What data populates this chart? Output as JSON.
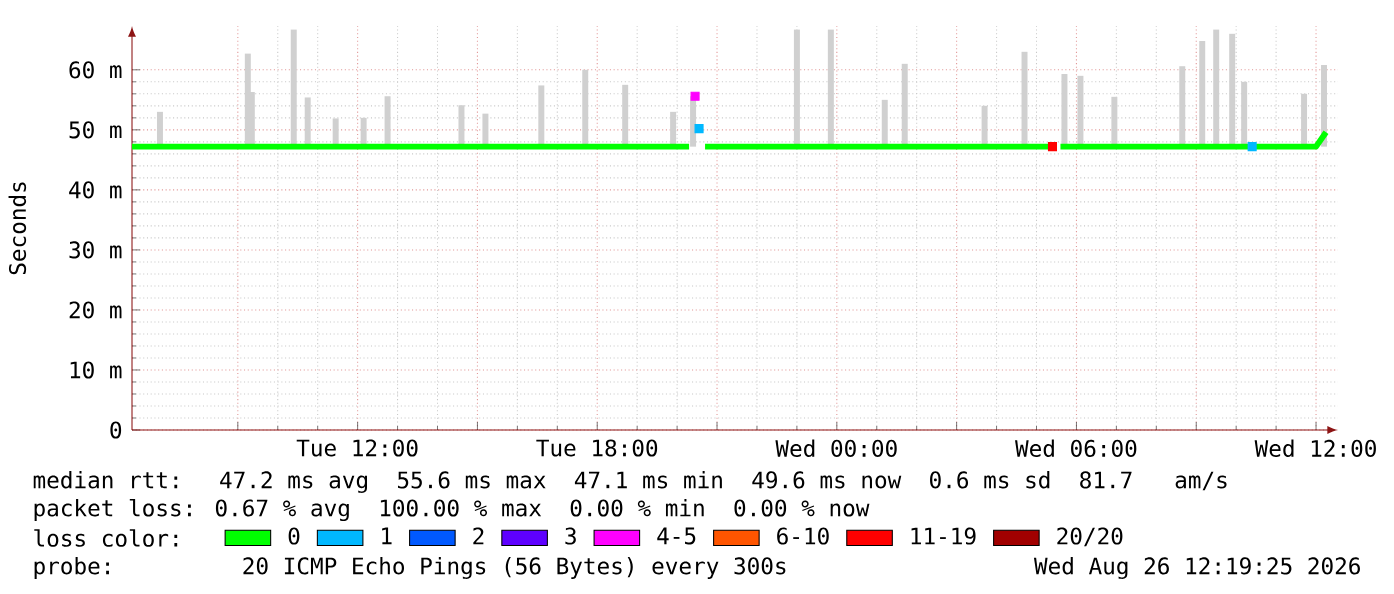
{
  "chart_data": {
    "type": "line",
    "ylabel": "Seconds",
    "xlim": [
      "2026-08-25T06:21",
      "2026-08-26T12:33"
    ],
    "ylim": [
      0,
      67.3
    ],
    "xticks": [
      {
        "value": "2026-08-25T09:00",
        "label": null
      },
      {
        "value": "2026-08-25T12:00",
        "label": "Tue 12:00"
      },
      {
        "value": "2026-08-25T15:00",
        "label": null
      },
      {
        "value": "2026-08-25T18:00",
        "label": "Tue 18:00"
      },
      {
        "value": "2026-08-25T21:00",
        "label": null
      },
      {
        "value": "2026-08-26T00:00",
        "label": "Wed 00:00"
      },
      {
        "value": "2026-08-26T03:00",
        "label": null
      },
      {
        "value": "2026-08-26T06:00",
        "label": "Wed 06:00"
      },
      {
        "value": "2026-08-26T09:00",
        "label": null
      },
      {
        "value": "2026-08-26T12:00",
        "label": "Wed 12:00"
      }
    ],
    "yticks": [
      0,
      {
        "value": 10,
        "label": "10 m"
      },
      {
        "value": 20,
        "label": "20 m"
      },
      {
        "value": 30,
        "label": "30 m"
      },
      {
        "value": 40,
        "label": "40 m"
      },
      {
        "value": 50,
        "label": "50 m"
      },
      {
        "value": 60,
        "label": "60 m"
      }
    ],
    "grid": true,
    "legend": "bottom",
    "series": [
      {
        "type": "bar",
        "color": "#d0d0d0",
        "x": [
          "2026-08-25T07:03",
          "2026-08-25T09:15",
          "2026-08-25T09:21",
          "2026-08-25T10:24",
          "2026-08-25T10:45",
          "2026-08-25T11:27",
          "2026-08-25T12:09",
          "2026-08-25T12:45",
          "2026-08-25T14:36",
          "2026-08-25T15:12",
          "2026-08-25T16:36",
          "2026-08-25T17:42",
          "2026-08-25T18:42",
          "2026-08-25T19:54",
          "2026-08-25T20:24",
          "2026-08-25T23:00",
          "2026-08-25T23:51",
          "2026-08-26T01:12",
          "2026-08-26T01:42",
          "2026-08-26T03:42",
          "2026-08-26T04:42",
          "2026-08-26T05:42",
          "2026-08-26T06:06",
          "2026-08-26T06:57",
          "2026-08-26T08:39",
          "2026-08-26T09:09",
          "2026-08-26T09:30",
          "2026-08-26T09:54",
          "2026-08-26T10:12",
          "2026-08-26T11:42",
          "2026-08-26T12:12"
        ],
        "base": [
          47.2,
          47.2,
          47.2,
          47.2,
          47.2,
          47.2,
          47.2,
          47.2,
          47.2,
          47.2,
          47.2,
          47.2,
          47.2,
          47.2,
          47.2,
          47.2,
          47.2,
          47.2,
          47.2,
          47.2,
          47.2,
          47.2,
          47.2,
          47.2,
          47.2,
          47.2,
          47.2,
          47.2,
          47.2,
          47.2,
          47.2
        ],
        "values": [
          5.8,
          15.5,
          9.1,
          19.5,
          8.2,
          4.7,
          4.8,
          8.4,
          6.9,
          5.5,
          10.2,
          12.8,
          10.3,
          5.8,
          8.4,
          19.5,
          19.5,
          7.8,
          13.8,
          6.8,
          15.8,
          12.1,
          11.8,
          8.3,
          13.4,
          17.6,
          19.5,
          18.8,
          10.8,
          8.8,
          13.6
        ]
      },
      {
        "name": "0",
        "marker": "none",
        "color": "#00ff00",
        "x": [
          "2026-08-25T06:21",
          "2026-08-25T12:00",
          "2026-08-25T18:00",
          "2026-08-25T20:18",
          "2026-08-25T20:21",
          "2026-08-25T20:42",
          "2026-08-26T00:00",
          "2026-08-26T05:18",
          "2026-08-26T05:21",
          "2026-08-26T05:36",
          "2026-08-26T10:18",
          "2026-08-26T10:21",
          "2026-08-26T10:27",
          "2026-08-26T12:00",
          "2026-08-26T12:15"
        ],
        "values": [
          47.2,
          47.2,
          47.2,
          47.2,
          null,
          47.2,
          47.2,
          47.2,
          null,
          47.2,
          47.2,
          null,
          47.2,
          47.2,
          49.6
        ]
      },
      {
        "name": "1",
        "type": "scatter",
        "marker": "square",
        "color": "#00b8ff",
        "x": [
          "2026-08-25T20:33",
          "2026-08-26T10:24"
        ],
        "values": [
          50.2,
          47.2
        ]
      },
      {
        "name": "2",
        "type": "scatter",
        "marker": "square",
        "color": "#0059ff"
      },
      {
        "name": "3",
        "type": "scatter",
        "marker": "square",
        "color": "#5e00ff"
      },
      {
        "name": "4-5",
        "type": "scatter",
        "marker": "square",
        "color": "#ff00ff",
        "x": [
          "2026-08-25T20:27"
        ],
        "values": [
          55.6
        ]
      },
      {
        "name": "6-10",
        "type": "scatter",
        "marker": "square",
        "color": "#ff5500"
      },
      {
        "name": "11-19",
        "type": "scatter",
        "marker": "square",
        "color": "#ff0000",
        "x": [
          "2026-08-26T05:24"
        ],
        "values": [
          47.2
        ]
      },
      {
        "name": "20/20",
        "type": "scatter",
        "marker": "square",
        "color": "#a10000"
      }
    ],
    "annotations": [
      "median rtt:  47.2 ms avg  55.6 ms max  47.1 ms min  49.6 ms now  0.6 ms sd  81.7   am/s",
      "packet loss: 0.67 % avg  100.00 % max  0.00 % min  0.00 % now",
      "loss color:",
      "probe:       20 ICMP Echo Pings (56 Bytes) every 300s",
      "Wed Aug 26 12:19:25 2026"
    ]
  }
}
